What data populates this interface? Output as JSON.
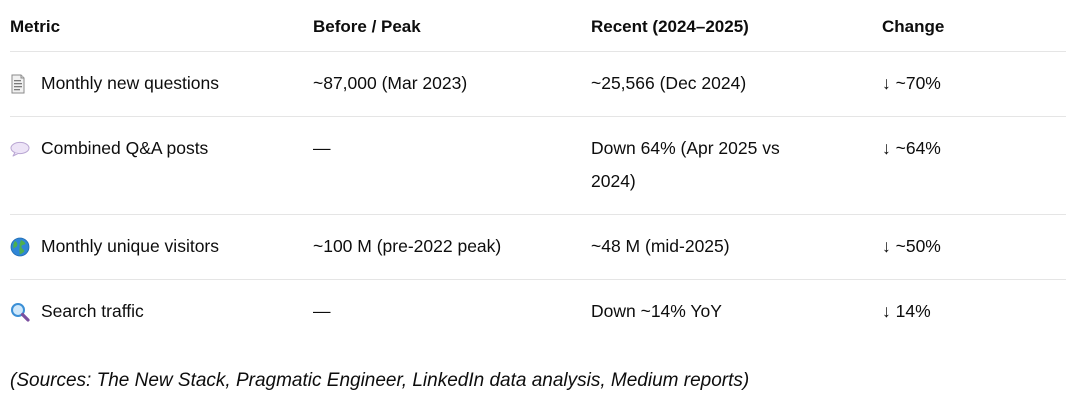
{
  "table": {
    "headers": [
      "Metric",
      "Before / Peak",
      "Recent (2024–2025)",
      "Change"
    ],
    "rows": [
      {
        "icon": "page-icon",
        "metric": "Monthly new questions",
        "before": "~87,000 (Mar 2023)",
        "recent": "~25,566 (Dec 2024)",
        "change": "↓ ~70%"
      },
      {
        "icon": "speech-bubble-icon",
        "metric": "Combined Q&A posts",
        "before": "—",
        "recent": "Down 64% (Apr 2025 vs 2024)",
        "change": "↓ ~64%"
      },
      {
        "icon": "globe-icon",
        "metric": "Monthly unique visitors",
        "before": "~100 M (pre-2022 peak)",
        "recent": "~48 M (mid-2025)",
        "change": "↓ ~50%"
      },
      {
        "icon": "magnifying-glass-icon",
        "metric": "Search traffic",
        "before": "—",
        "recent": "Down ~14% YoY",
        "change": "↓ 14%"
      }
    ]
  },
  "footer": {
    "sources": "(Sources: The New Stack, Pragmatic Engineer, LinkedIn data analysis, Medium reports)"
  },
  "colors": {
    "text": "#0d0d0d",
    "divider": "#e5e5e5",
    "background": "#ffffff"
  }
}
